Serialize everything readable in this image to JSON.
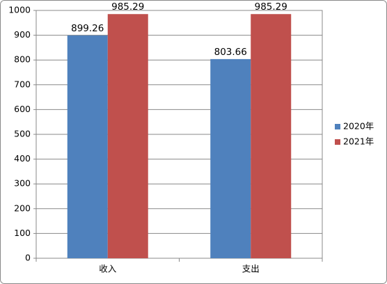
{
  "chart_data": {
    "type": "bar",
    "categories": [
      "收入",
      "支出"
    ],
    "series": [
      {
        "name": "2020年",
        "color": "#4f81bd",
        "values": [
          899.26,
          803.66
        ]
      },
      {
        "name": "2021年",
        "color": "#c0504d",
        "values": [
          985.29,
          985.29
        ]
      }
    ],
    "ylim": [
      0,
      1000
    ],
    "yticks": [
      0,
      100,
      200,
      300,
      400,
      500,
      600,
      700,
      800,
      900,
      1000
    ],
    "grid": true,
    "legend": "right"
  }
}
